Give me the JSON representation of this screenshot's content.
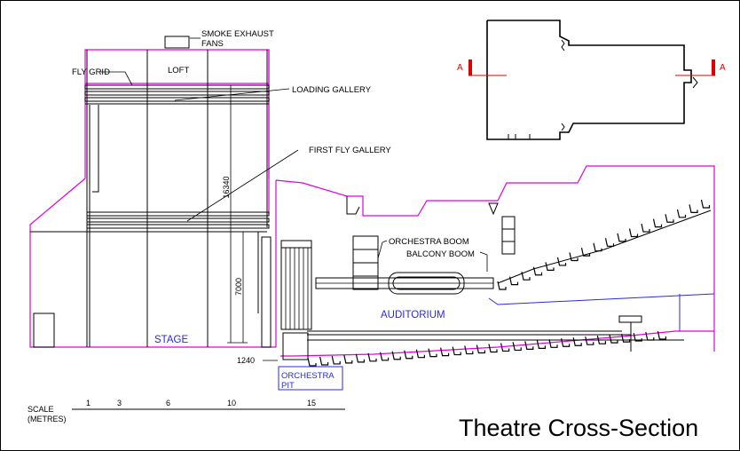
{
  "title": "Theatre Cross-Section",
  "labels": {
    "smoke_exhaust_1": "SMOKE EXHAUST",
    "smoke_exhaust_2": "FANS",
    "loft": "LOFT",
    "fly_grid": "FLY GRID",
    "loading_gallery": "LOADING GALLERY",
    "first_fly_gallery": "FIRST FLY GALLERY",
    "orchestra_boom": "ORCHESTRA BOOM",
    "balcony_boom": "BALCONY BOOM",
    "auditorium": "AUDITORIUM",
    "stage": "STAGE",
    "orchestra_pit_1": "ORCHESTRA",
    "orchestra_pit_2": "PIT"
  },
  "dimensions": {
    "height_total": "16340",
    "height_stage": "7000",
    "pit_offset": "1240"
  },
  "section_marker": {
    "left": "A",
    "right": "A"
  },
  "scale": {
    "label_1": "SCALE",
    "label_2": "(METRES)",
    "ticks": [
      "1",
      "3",
      "6",
      "10",
      "15"
    ]
  },
  "colors": {
    "outline": "#e000e0",
    "structure": "#000000",
    "label_blue": "#2b2bd6",
    "section_red": "#e00000"
  }
}
